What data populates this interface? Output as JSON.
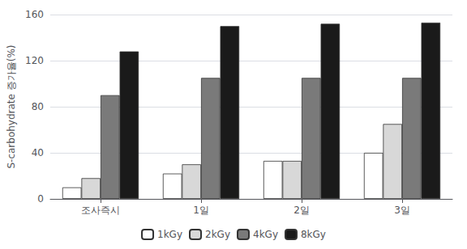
{
  "chart_data": {
    "type": "bar",
    "categories": [
      "조사즉시",
      "1일",
      "2일",
      "3일"
    ],
    "series": [
      {
        "name": "1kGy",
        "color": "#ffffff",
        "values": [
          10,
          22,
          33,
          40
        ]
      },
      {
        "name": "2kGy",
        "color": "#d8d8d8",
        "values": [
          18,
          30,
          33,
          65
        ]
      },
      {
        "name": "4kGy",
        "color": "#7a7a7a",
        "values": [
          90,
          105,
          105,
          105
        ]
      },
      {
        "name": "8kGy",
        "color": "#1a1a1a",
        "values": [
          128,
          150,
          152,
          153
        ]
      }
    ],
    "ylabel": "S-carbohydrate 증가율(%)",
    "ylim": [
      0,
      160
    ],
    "yticks": [
      0,
      40,
      80,
      120,
      160
    ],
    "grid": true,
    "legend": "bottom"
  }
}
